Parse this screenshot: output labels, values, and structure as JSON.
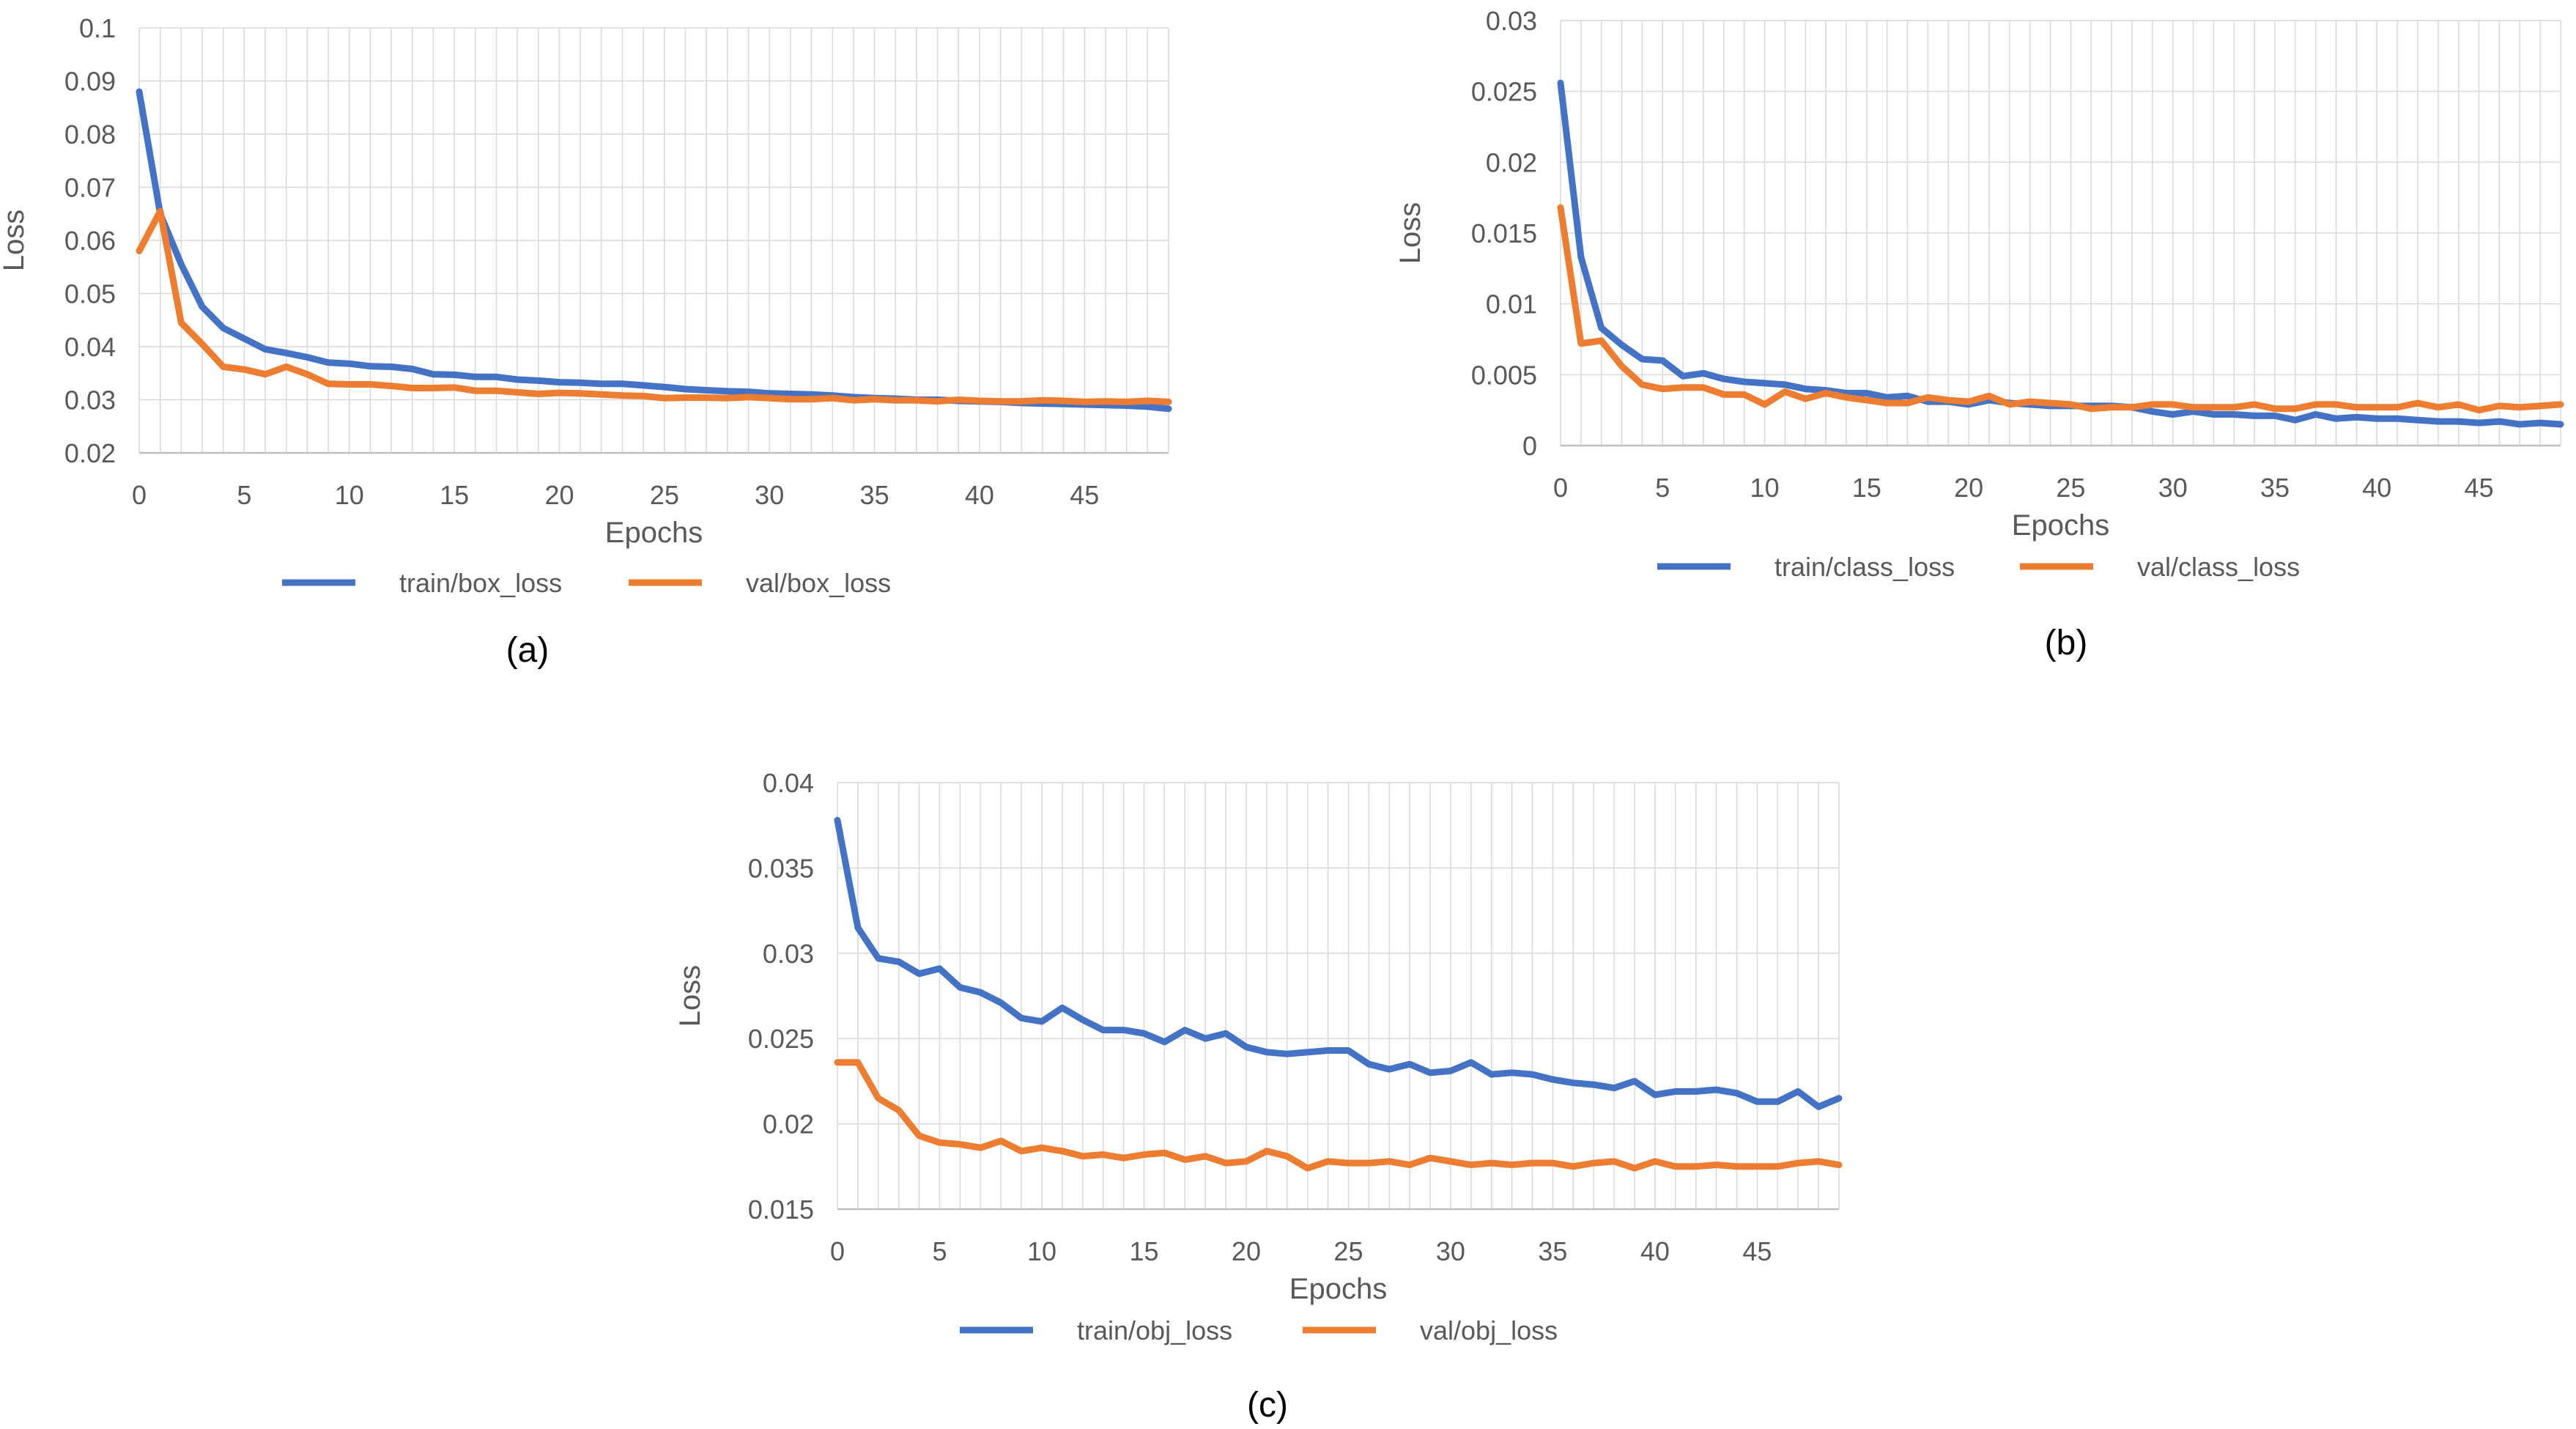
{
  "colors": {
    "train": "#4472C4",
    "val": "#ED7D31",
    "grid": "#D9D9D9",
    "axis": "#BFBFBF",
    "text": "#595959"
  },
  "chart_data": [
    {
      "id": "a",
      "type": "line",
      "caption": "(a)",
      "xlabel": "Epochs",
      "ylabel": "Loss",
      "xlim": [
        0,
        49
      ],
      "ylim": [
        0.02,
        0.1
      ],
      "xticks": [
        0,
        5,
        10,
        15,
        20,
        25,
        30,
        35,
        40,
        45
      ],
      "yticks": [
        "0.02",
        "0.03",
        "0.04",
        "0.05",
        "0.06",
        "0.07",
        "0.08",
        "0.09",
        "0.1"
      ],
      "series": [
        {
          "name": "train/box_loss",
          "color": "#4472C4",
          "values": [
            0.088,
            0.065,
            0.0555,
            0.0475,
            0.0435,
            0.0415,
            0.0395,
            0.0388,
            0.038,
            0.037,
            0.0368,
            0.0363,
            0.0362,
            0.0358,
            0.0348,
            0.0347,
            0.0343,
            0.0343,
            0.0338,
            0.0336,
            0.0333,
            0.0332,
            0.033,
            0.033,
            0.0327,
            0.0324,
            0.032,
            0.0318,
            0.0316,
            0.0315,
            0.0312,
            0.0311,
            0.031,
            0.0308,
            0.0305,
            0.0303,
            0.0302,
            0.03,
            0.03,
            0.0298,
            0.0297,
            0.0296,
            0.0294,
            0.0293,
            0.0292,
            0.0291,
            0.029,
            0.0289,
            0.0287,
            0.0283
          ]
        },
        {
          "name": "val/box_loss",
          "color": "#ED7D31",
          "values": [
            0.058,
            0.0655,
            0.0445,
            0.0405,
            0.0362,
            0.0357,
            0.0348,
            0.0362,
            0.0348,
            0.033,
            0.0329,
            0.0329,
            0.0326,
            0.0322,
            0.0322,
            0.0323,
            0.0317,
            0.0317,
            0.0314,
            0.0311,
            0.0313,
            0.0312,
            0.031,
            0.0308,
            0.0307,
            0.0303,
            0.0304,
            0.0304,
            0.0303,
            0.0305,
            0.0303,
            0.0301,
            0.0301,
            0.0303,
            0.0299,
            0.0301,
            0.0299,
            0.0299,
            0.0297,
            0.03,
            0.0298,
            0.0297,
            0.0297,
            0.0299,
            0.0298,
            0.0296,
            0.0297,
            0.0296,
            0.0298,
            0.0296
          ]
        }
      ]
    },
    {
      "id": "b",
      "type": "line",
      "caption": "(b)",
      "xlabel": "Epochs",
      "ylabel": "Loss",
      "xlim": [
        0,
        49
      ],
      "ylim": [
        0,
        0.03
      ],
      "xticks": [
        0,
        5,
        10,
        15,
        20,
        25,
        30,
        35,
        40,
        45
      ],
      "yticks": [
        "0",
        "0.005",
        "0.01",
        "0.015",
        "0.02",
        "0.025",
        "0.03"
      ],
      "series": [
        {
          "name": "train/class_loss",
          "color": "#4472C4",
          "values": [
            0.0256,
            0.0133,
            0.0083,
            0.0071,
            0.0061,
            0.006,
            0.0049,
            0.0051,
            0.0047,
            0.0045,
            0.0044,
            0.0043,
            0.004,
            0.0039,
            0.0037,
            0.0037,
            0.0034,
            0.0035,
            0.0031,
            0.0031,
            0.0029,
            0.0032,
            0.003,
            0.0029,
            0.0028,
            0.0028,
            0.0028,
            0.0028,
            0.0027,
            0.0024,
            0.0022,
            0.0024,
            0.0022,
            0.0022,
            0.0021,
            0.0021,
            0.0018,
            0.0022,
            0.0019,
            0.002,
            0.0019,
            0.0019,
            0.0018,
            0.0017,
            0.0017,
            0.0016,
            0.0017,
            0.0015,
            0.0016,
            0.0015
          ]
        },
        {
          "name": "val/class_loss",
          "color": "#ED7D31",
          "values": [
            0.0168,
            0.0072,
            0.0074,
            0.0056,
            0.0043,
            0.004,
            0.0041,
            0.0041,
            0.0036,
            0.0036,
            0.0029,
            0.0038,
            0.0033,
            0.0037,
            0.0034,
            0.0032,
            0.003,
            0.003,
            0.0034,
            0.0032,
            0.0031,
            0.0035,
            0.0029,
            0.0031,
            0.003,
            0.0029,
            0.0026,
            0.0027,
            0.0027,
            0.0029,
            0.0029,
            0.0027,
            0.0027,
            0.0027,
            0.0029,
            0.0026,
            0.0026,
            0.0029,
            0.0029,
            0.0027,
            0.0027,
            0.0027,
            0.003,
            0.0027,
            0.0029,
            0.0025,
            0.0028,
            0.0027,
            0.0028,
            0.0029
          ]
        }
      ]
    },
    {
      "id": "c",
      "type": "line",
      "caption": "(c)",
      "xlabel": "Epochs",
      "ylabel": "Loss",
      "xlim": [
        0,
        49
      ],
      "ylim": [
        0.015,
        0.04
      ],
      "xticks": [
        0,
        5,
        10,
        15,
        20,
        25,
        30,
        35,
        40,
        45
      ],
      "yticks": [
        "0.015",
        "0.02",
        "0.025",
        "0.03",
        "0.035",
        "0.04"
      ],
      "series": [
        {
          "name": "train/obj_loss",
          "color": "#4472C4",
          "values": [
            0.0378,
            0.0315,
            0.0297,
            0.0295,
            0.0288,
            0.0291,
            0.028,
            0.0277,
            0.0271,
            0.0262,
            0.026,
            0.0268,
            0.0261,
            0.0255,
            0.0255,
            0.0253,
            0.0248,
            0.0255,
            0.025,
            0.0253,
            0.0245,
            0.0242,
            0.0241,
            0.0242,
            0.0243,
            0.0243,
            0.0235,
            0.0232,
            0.0235,
            0.023,
            0.0231,
            0.0236,
            0.0229,
            0.023,
            0.0229,
            0.0226,
            0.0224,
            0.0223,
            0.0221,
            0.0225,
            0.0217,
            0.0219,
            0.0219,
            0.022,
            0.0218,
            0.0213,
            0.0213,
            0.0219,
            0.021,
            0.0215
          ]
        },
        {
          "name": "val/obj_loss",
          "color": "#ED7D31",
          "values": [
            0.0236,
            0.0236,
            0.0215,
            0.0208,
            0.0193,
            0.0189,
            0.0188,
            0.0186,
            0.019,
            0.0184,
            0.0186,
            0.0184,
            0.0181,
            0.0182,
            0.018,
            0.0182,
            0.0183,
            0.0179,
            0.0181,
            0.0177,
            0.0178,
            0.0184,
            0.0181,
            0.0174,
            0.0178,
            0.0177,
            0.0177,
            0.0178,
            0.0176,
            0.018,
            0.0178,
            0.0176,
            0.0177,
            0.0176,
            0.0177,
            0.0177,
            0.0175,
            0.0177,
            0.0178,
            0.0174,
            0.0178,
            0.0175,
            0.0175,
            0.0176,
            0.0175,
            0.0175,
            0.0175,
            0.0177,
            0.0178,
            0.0176
          ]
        }
      ]
    }
  ]
}
